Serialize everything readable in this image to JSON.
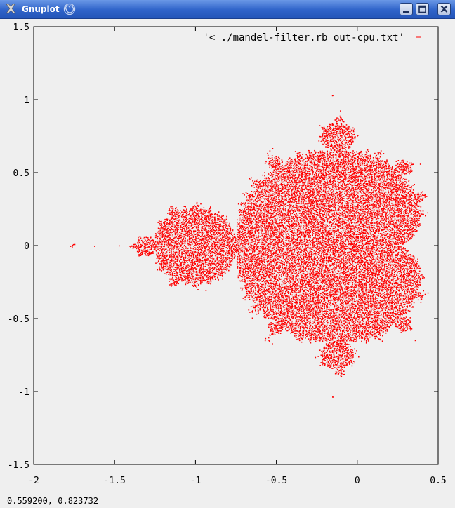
{
  "window": {
    "title": "Gnuplot",
    "app_icon": "x-icon",
    "swirl_icon": "swirl-icon",
    "buttons": {
      "minimize": "minimize-icon",
      "maximize": "maximize-icon",
      "close": "close-icon"
    }
  },
  "status": {
    "coordinates": "0.559200,  0.823732"
  },
  "colors": {
    "series": "#ff0000",
    "background": "#efefef",
    "axis": "#000000"
  },
  "chart_data": {
    "type": "scatter",
    "title": "",
    "xlabel": "",
    "ylabel": "",
    "xlim": [
      -2,
      0.5
    ],
    "ylim": [
      -1.5,
      1.5
    ],
    "x_ticks": [
      "-2",
      "-1.5",
      "-1",
      "-0.5",
      "0",
      "0.5"
    ],
    "y_ticks": [
      "1.5",
      "1",
      "0.5",
      "0",
      "-0.5",
      "-1",
      "-1.5"
    ],
    "x_tick_values": [
      -2,
      -1.5,
      -1,
      -0.5,
      0,
      0.5
    ],
    "y_tick_values": [
      1.5,
      1,
      0.5,
      0,
      -0.5,
      -1,
      -1.5
    ],
    "grid": false,
    "legend_position": "top-right",
    "series": [
      {
        "name": "'< ./mandel-filter.rb out-cpu.txt'",
        "color": "#ff0000",
        "marker": "dot",
        "description_of_points": "set of sampled points c in the Mandelbrot set"
      }
    ],
    "sample_points": [
      [
        -0.25,
        0.0
      ],
      [
        -0.1,
        0.5
      ],
      [
        0.2,
        0.3
      ],
      [
        -0.5,
        -0.3
      ],
      [
        -1.0,
        0.0
      ],
      [
        -1.1,
        0.2
      ],
      [
        -0.9,
        -0.2
      ],
      [
        -0.12,
        0.75
      ],
      [
        -0.12,
        -0.75
      ],
      [
        -1.3,
        0.0
      ],
      [
        -1.75,
        0.0
      ],
      [
        0.3,
        0.0
      ],
      [
        -0.6,
        0.4
      ],
      [
        0.1,
        -0.5
      ],
      [
        -0.75,
        0.05
      ]
    ]
  }
}
